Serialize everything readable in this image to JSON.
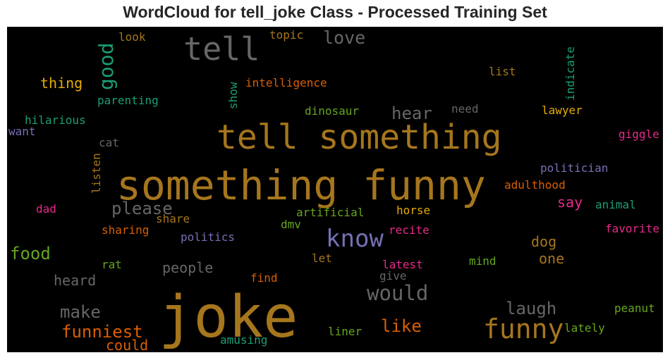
{
  "chart_data": {
    "type": "wordcloud",
    "title": "WordCloud for tell_joke Class - Processed Training Set",
    "background": "#000000",
    "words": [
      {
        "text": "joke",
        "color": "#a6761d",
        "vertical": false
      },
      {
        "text": "something funny",
        "color": "#a6761d",
        "vertical": false
      },
      {
        "text": "tell something",
        "color": "#a6761d",
        "vertical": false
      },
      {
        "text": "tell",
        "color": "#666666",
        "vertical": false
      },
      {
        "text": "funny",
        "color": "#a6761d",
        "vertical": false
      },
      {
        "text": "know",
        "color": "#7570b3",
        "vertical": false
      },
      {
        "text": "good",
        "color": "#1b9e77",
        "vertical": true
      },
      {
        "text": "would",
        "color": "#666666",
        "vertical": false
      },
      {
        "text": "love",
        "color": "#666666",
        "vertical": false
      },
      {
        "text": "please",
        "color": "#666666",
        "vertical": false
      },
      {
        "text": "food",
        "color": "#66a61e",
        "vertical": false
      },
      {
        "text": "funniest",
        "color": "#d95f02",
        "vertical": false
      },
      {
        "text": "laugh",
        "color": "#666666",
        "vertical": false
      },
      {
        "text": "make",
        "color": "#666666",
        "vertical": false
      },
      {
        "text": "hear",
        "color": "#666666",
        "vertical": false
      },
      {
        "text": "like",
        "color": "#d95f02",
        "vertical": false
      },
      {
        "text": "heard",
        "color": "#666666",
        "vertical": false
      },
      {
        "text": "people",
        "color": "#666666",
        "vertical": false
      },
      {
        "text": "thing",
        "color": "#e6ab02",
        "vertical": false
      },
      {
        "text": "dog",
        "color": "#a6761d",
        "vertical": false
      },
      {
        "text": "one",
        "color": "#a6761d",
        "vertical": false
      },
      {
        "text": "could",
        "color": "#d95f02",
        "vertical": false
      },
      {
        "text": "say",
        "color": "#e7298a",
        "vertical": false
      },
      {
        "text": "look",
        "color": "#a6761d",
        "vertical": false
      },
      {
        "text": "topic",
        "color": "#a6761d",
        "vertical": false
      },
      {
        "text": "list",
        "color": "#a6761d",
        "vertical": false
      },
      {
        "text": "indicate",
        "color": "#1b9e77",
        "vertical": true
      },
      {
        "text": "intelligence",
        "color": "#d95f02",
        "vertical": false
      },
      {
        "text": "show",
        "color": "#1b9e77",
        "vertical": true
      },
      {
        "text": "parenting",
        "color": "#1b9e77",
        "vertical": false
      },
      {
        "text": "dinosaur",
        "color": "#66a61e",
        "vertical": false
      },
      {
        "text": "need",
        "color": "#666666",
        "vertical": false
      },
      {
        "text": "lawyer",
        "color": "#e6ab02",
        "vertical": false
      },
      {
        "text": "hilarious",
        "color": "#1b9e77",
        "vertical": false
      },
      {
        "text": "want",
        "color": "#7570b3",
        "vertical": false
      },
      {
        "text": "giggle",
        "color": "#e7298a",
        "vertical": false
      },
      {
        "text": "cat",
        "color": "#666666",
        "vertical": false
      },
      {
        "text": "listen",
        "color": "#a6761d",
        "vertical": true
      },
      {
        "text": "politician",
        "color": "#7570b3",
        "vertical": false
      },
      {
        "text": "adulthood",
        "color": "#d95f02",
        "vertical": false
      },
      {
        "text": "animal",
        "color": "#1b9e77",
        "vertical": false
      },
      {
        "text": "dad",
        "color": "#e7298a",
        "vertical": false
      },
      {
        "text": "share",
        "color": "#a6761d",
        "vertical": false
      },
      {
        "text": "artificial",
        "color": "#66a61e",
        "vertical": false
      },
      {
        "text": "horse",
        "color": "#e6ab02",
        "vertical": false
      },
      {
        "text": "favorite",
        "color": "#e7298a",
        "vertical": false
      },
      {
        "text": "sharing",
        "color": "#d95f02",
        "vertical": false
      },
      {
        "text": "politics",
        "color": "#7570b3",
        "vertical": false
      },
      {
        "text": "dmv",
        "color": "#66a61e",
        "vertical": false
      },
      {
        "text": "recite",
        "color": "#e7298a",
        "vertical": false
      },
      {
        "text": "rat",
        "color": "#66a61e",
        "vertical": false
      },
      {
        "text": "let",
        "color": "#a6761d",
        "vertical": false
      },
      {
        "text": "latest",
        "color": "#e7298a",
        "vertical": false
      },
      {
        "text": "mind",
        "color": "#66a61e",
        "vertical": false
      },
      {
        "text": "find",
        "color": "#d95f02",
        "vertical": false
      },
      {
        "text": "give",
        "color": "#666666",
        "vertical": false
      },
      {
        "text": "peanut",
        "color": "#66a61e",
        "vertical": false
      },
      {
        "text": "lately",
        "color": "#66a61e",
        "vertical": false
      },
      {
        "text": "liner",
        "color": "#66a61e",
        "vertical": false
      },
      {
        "text": "amusing",
        "color": "#1b9e77",
        "vertical": false
      }
    ]
  }
}
